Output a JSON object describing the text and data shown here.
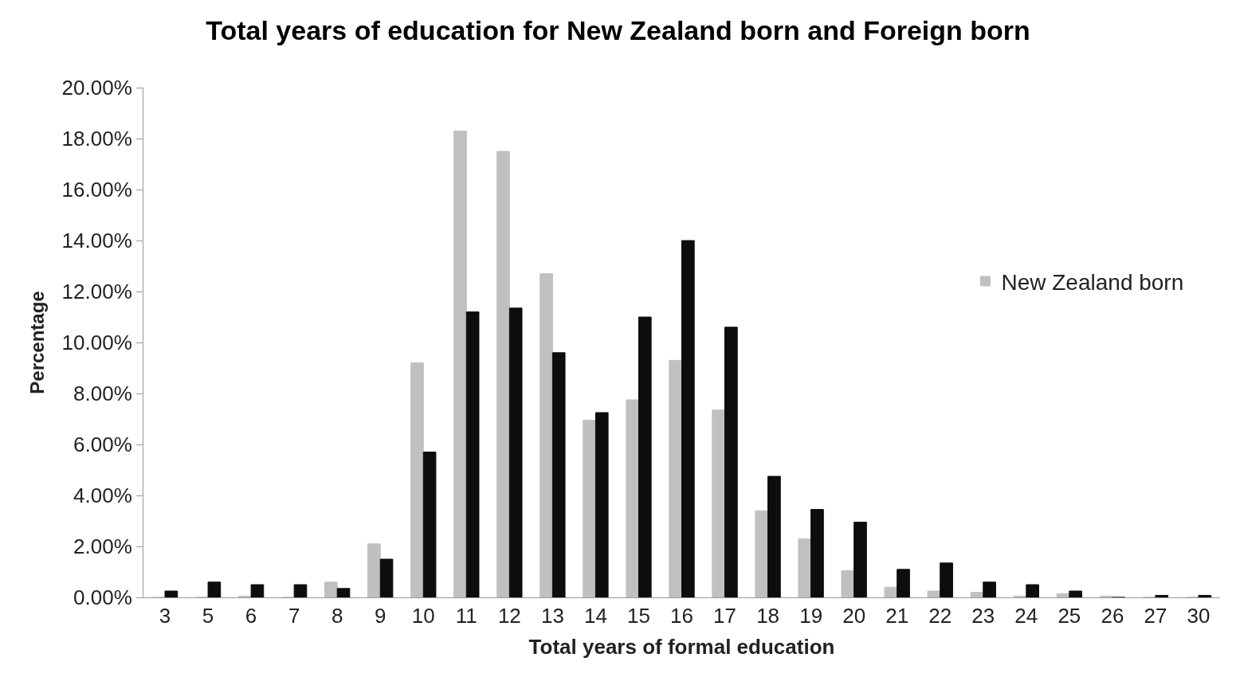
{
  "chart_data": {
    "type": "bar",
    "title": "Total years of education for New Zealand born and Foreign born",
    "xlabel": "Total years of formal education",
    "ylabel": "Percentage",
    "categories": [
      "3",
      "5",
      "6",
      "7",
      "8",
      "9",
      "10",
      "11",
      "12",
      "13",
      "14",
      "15",
      "16",
      "17",
      "18",
      "19",
      "20",
      "21",
      "22",
      "23",
      "24",
      "25",
      "26",
      "27",
      "30"
    ],
    "series": [
      {
        "name": "New Zealand born",
        "color": "#c0c0c0",
        "values": [
          0,
          0,
          0.05,
          0,
          0.6,
          2.1,
          9.2,
          18.3,
          17.5,
          12.7,
          6.95,
          7.75,
          9.3,
          7.35,
          3.4,
          2.3,
          1.05,
          0.4,
          0.25,
          0.2,
          0.05,
          0.15,
          0.05,
          0,
          0
        ]
      },
      {
        "color": "#0d0d0d",
        "values": [
          0.25,
          0.6,
          0.5,
          0.5,
          0.35,
          1.5,
          5.7,
          11.2,
          11.35,
          9.6,
          7.25,
          11.0,
          14.0,
          10.6,
          4.75,
          3.45,
          2.95,
          1.1,
          1.35,
          0.6,
          0.5,
          0.25,
          0,
          0.08,
          0.08
        ]
      }
    ],
    "ylim": [
      0,
      20
    ],
    "yticks": [
      {
        "value": 0,
        "label": "0.00%"
      },
      {
        "value": 2,
        "label": "2.00%"
      },
      {
        "value": 4,
        "label": "4.00%"
      },
      {
        "value": 6,
        "label": "6.00%"
      },
      {
        "value": 8,
        "label": "8.00%"
      },
      {
        "value": 10,
        "label": "10.00%"
      },
      {
        "value": 12,
        "label": "12.00%"
      },
      {
        "value": 14,
        "label": "14.00%"
      },
      {
        "value": 16,
        "label": "16.00%"
      },
      {
        "value": 18,
        "label": "18.00%"
      },
      {
        "value": 20,
        "label": "20.00%"
      }
    ],
    "legend": "right"
  }
}
